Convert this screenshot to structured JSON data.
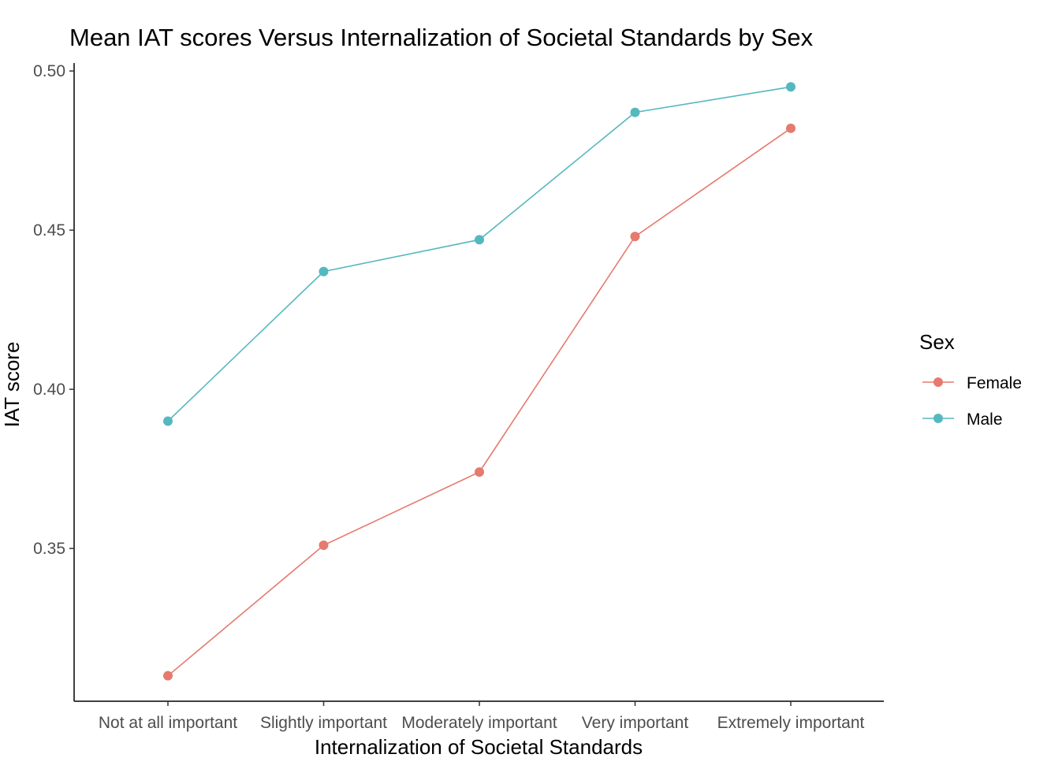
{
  "chart_data": {
    "type": "line",
    "title": "Mean IAT scores Versus Internalization of Societal Standards by Sex",
    "xlabel": "Internalization of Societal Standards",
    "ylabel": "IAT score",
    "categories": [
      "Not at all important",
      "Slightly important",
      "Moderately important",
      "Very important",
      "Extremely important"
    ],
    "ylim": [
      0.302,
      0.5025
    ],
    "yticks": [
      "0.35",
      "0.40",
      "0.45",
      "0.50"
    ],
    "grid": false,
    "legend": {
      "title": "Sex",
      "position": "right"
    },
    "series": [
      {
        "name": "Female",
        "color": "#E57A6F",
        "values": [
          0.31,
          0.351,
          0.374,
          0.448,
          0.482
        ]
      },
      {
        "name": "Male",
        "color": "#55B8BF",
        "values": [
          0.39,
          0.437,
          0.447,
          0.487,
          0.495
        ]
      }
    ]
  }
}
